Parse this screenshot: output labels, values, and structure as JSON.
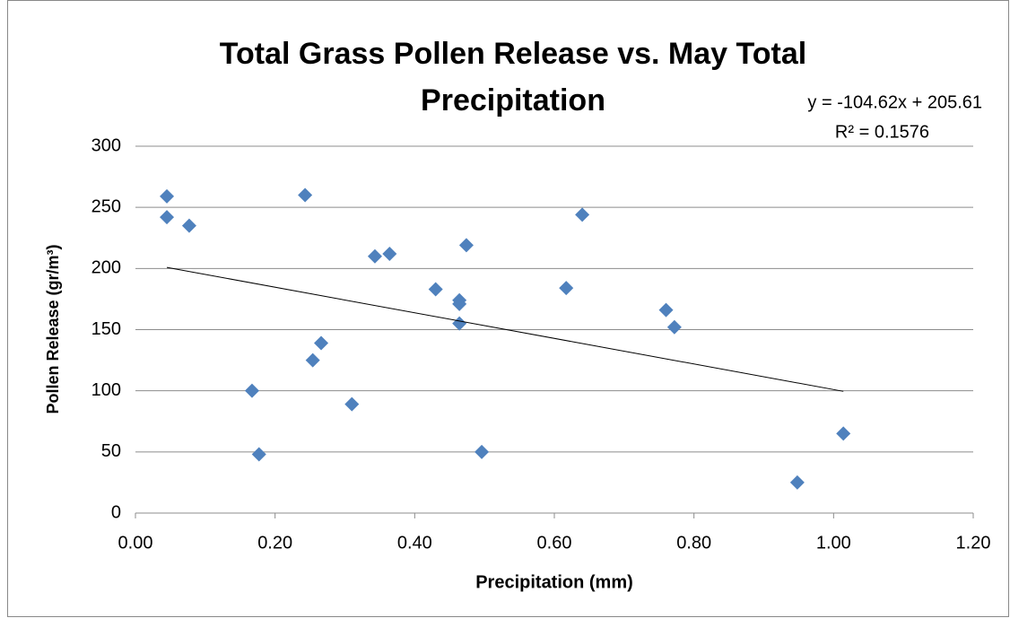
{
  "chart_data": {
    "type": "scatter",
    "title": "Total Grass Pollen Release vs. May Total Precipitation",
    "x_label": "Precipitation (mm)",
    "y_label": "Pollen Release (gr/m³)",
    "series": [
      {
        "name": "Pollen Release",
        "color": "#4f81bd",
        "x": [
          0.045,
          0.045,
          0.077,
          0.243,
          0.343,
          0.364,
          0.474,
          0.64,
          0.43,
          0.464,
          0.464,
          0.464,
          0.617,
          0.76,
          0.772,
          0.266,
          0.254,
          0.167,
          0.31,
          0.177,
          0.496,
          0.948,
          1.014
        ],
        "values": [
          259,
          242,
          235,
          260,
          210,
          212,
          219,
          244,
          183,
          174,
          171,
          155,
          184,
          166,
          152,
          139,
          125,
          100,
          89,
          48,
          50,
          25,
          65
        ]
      }
    ],
    "trendline": {
      "slope": -104.62,
      "intercept": 205.61,
      "label": "y = -104.62x + 205.61",
      "r2_label": "R² = 0.1576"
    },
    "xlim": [
      0,
      1.2
    ],
    "xticks": [
      {
        "value": 0,
        "label": "0.00"
      },
      {
        "value": 0.2,
        "label": "0.20"
      },
      {
        "value": 0.4,
        "label": "0.40"
      },
      {
        "value": 0.6,
        "label": "0.60"
      },
      {
        "value": 0.8,
        "label": "0.80"
      },
      {
        "value": 1,
        "label": "1.00"
      },
      {
        "value": 1.2,
        "label": "1.20"
      }
    ],
    "ylim": [
      0,
      300
    ],
    "yticks": [
      0,
      50,
      100,
      150,
      200,
      250,
      300
    ],
    "grid": true
  }
}
